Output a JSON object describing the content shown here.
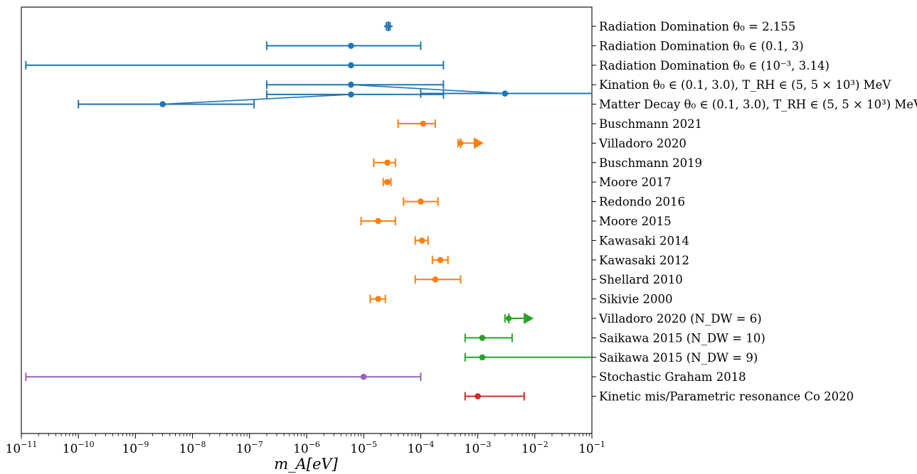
{
  "chart_data": {
    "type": "scatter",
    "subtype": "horizontal error-bar (forest) plot",
    "x_scale": "log",
    "xlim": [
      1e-11,
      0.1
    ],
    "xlabel": "m_A[eV]",
    "x_ticks": [
      {
        "base": "10",
        "exp": "−11",
        "value": 1e-11
      },
      {
        "base": "10",
        "exp": "−10",
        "value": 1e-10
      },
      {
        "base": "10",
        "exp": "−9",
        "value": 1e-09
      },
      {
        "base": "10",
        "exp": "−8",
        "value": 1e-08
      },
      {
        "base": "10",
        "exp": "−7",
        "value": 1e-07
      },
      {
        "base": "10",
        "exp": "−6",
        "value": 1e-06
      },
      {
        "base": "10",
        "exp": "−5",
        "value": 1e-05
      },
      {
        "base": "10",
        "exp": "−4",
        "value": 0.0001
      },
      {
        "base": "10",
        "exp": "−3",
        "value": 0.001
      },
      {
        "base": "10",
        "exp": "−2",
        "value": 0.01
      },
      {
        "base": "10",
        "exp": "−1",
        "value": 0.1
      }
    ],
    "grid": false,
    "legend": "none",
    "colors": {
      "blue": "#1f77b4",
      "orange": "#ff7f0e",
      "green": "#2ca02c",
      "purple": "#9467bd",
      "red": "#d62728"
    },
    "rows": [
      {
        "label": "Radiation Domination θ₀ = 2.155",
        "color": "blue",
        "x": 2.7e-05,
        "lo": 2.5e-05,
        "hi": 2.9e-05,
        "marker": "plus"
      },
      {
        "label": "Radiation Domination θ₀ ∈ (0.1, 3)",
        "color": "blue",
        "x": 6e-06,
        "lo": 2e-07,
        "hi": 0.0001
      },
      {
        "label": "Radiation Domination θ₀ ∈ (10⁻³, 3.14)",
        "color": "blue",
        "x": 6e-06,
        "lo": 1.2e-11,
        "hi": 0.00025
      },
      {
        "label": "Kination θ₀ ∈ (0.1, 3.0), T_RH ∈ (5, 5 × 10³) MeV",
        "color": "blue",
        "points": [
          {
            "x": 6e-06,
            "lo": 2e-07,
            "hi": 0.00025,
            "offset": 0
          },
          {
            "x": 0.003,
            "lo": 0.0001,
            "hi": 0.1,
            "offset": 0.45
          }
        ]
      },
      {
        "label": "Matter Decay θ₀ ∈ (0.1, 3.0), T_RH ∈ (5, 5 × 10³) MeV",
        "color": "blue",
        "points": [
          {
            "x": 6e-06,
            "lo": 2e-07,
            "hi": 0.00025,
            "offset": -0.5
          },
          {
            "x": 3e-09,
            "lo": 1e-10,
            "hi": 1.2e-07,
            "offset": 0
          }
        ]
      },
      {
        "label": "Buschmann 2021",
        "color": "orange",
        "x": 0.00011,
        "lo": 4e-05,
        "hi": 0.00018
      },
      {
        "label": "Villadoro 2020",
        "color": "orange",
        "x": 0.0005,
        "lo": 0.00045,
        "hi": 0.0012,
        "marker": "lower-limit"
      },
      {
        "label": "Buschmann 2019",
        "color": "orange",
        "x": 2.6e-05,
        "lo": 1.5e-05,
        "hi": 3.6e-05
      },
      {
        "label": "Moore 2017",
        "color": "orange",
        "x": 2.6e-05,
        "lo": 2.2e-05,
        "hi": 3e-05
      },
      {
        "label": "Redondo 2016",
        "color": "orange",
        "x": 0.0001,
        "lo": 5e-05,
        "hi": 0.0002
      },
      {
        "label": "Moore 2015",
        "color": "orange",
        "x": 1.8e-05,
        "lo": 9e-06,
        "hi": 3.6e-05
      },
      {
        "label": "Kawasaki 2014",
        "color": "orange",
        "x": 0.000105,
        "lo": 8e-05,
        "hi": 0.000135
      },
      {
        "label": "Kawasaki 2012",
        "color": "orange",
        "x": 0.00022,
        "lo": 0.00016,
        "hi": 0.0003
      },
      {
        "label": "Shellard 2010",
        "color": "orange",
        "x": 0.00018,
        "lo": 8e-05,
        "hi": 0.0005
      },
      {
        "label": "Sikivie 2000",
        "color": "orange",
        "x": 1.8e-05,
        "lo": 1.3e-05,
        "hi": 2.4e-05
      },
      {
        "label": "Villadoro 2020 (N_DW = 6)",
        "color": "green",
        "x": 0.0035,
        "lo": 0.003,
        "hi": 0.009,
        "marker": "lower-limit"
      },
      {
        "label": "Saikawa 2015 (N_DW = 10)",
        "color": "green",
        "x": 0.0012,
        "lo": 0.0006,
        "hi": 0.004
      },
      {
        "label": "Saikawa 2015 (N_DW = 9)",
        "color": "green",
        "x": 0.0012,
        "lo": 0.0006,
        "hi": 0.1
      },
      {
        "label": "Stochastic Graham 2018",
        "color": "purple",
        "x": 1e-05,
        "lo": 1.2e-11,
        "hi": 0.0001
      },
      {
        "label": "Kinetic mis/Parametric resonance Co 2020",
        "color": "red",
        "x": 0.001,
        "lo": 0.0006,
        "hi": 0.0065
      }
    ]
  }
}
